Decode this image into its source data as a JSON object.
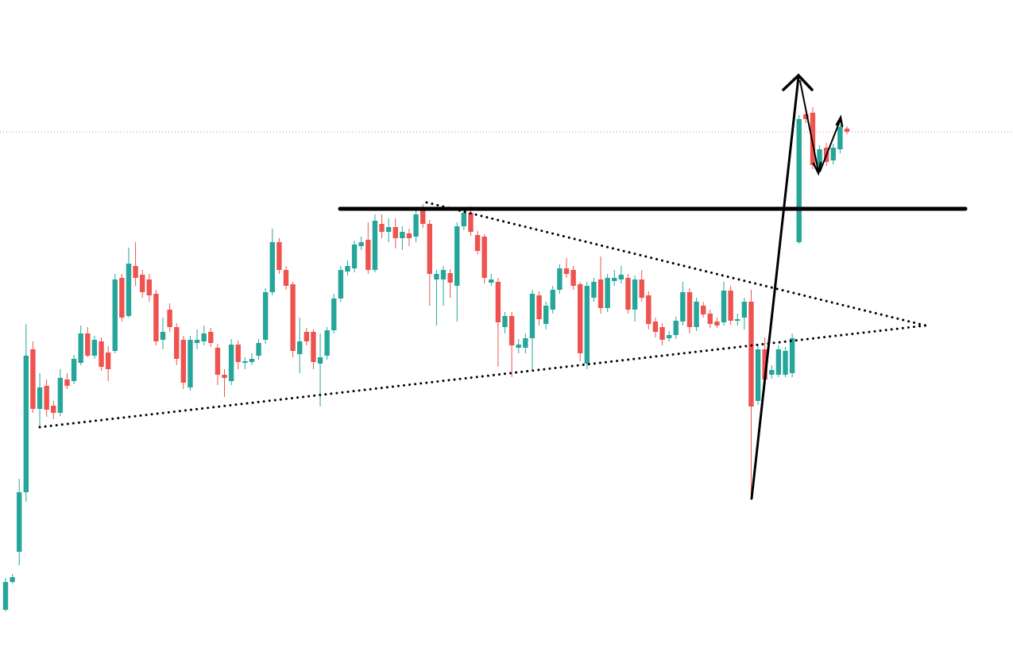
{
  "chart_data": {
    "type": "candlestick",
    "up_color": "#26a69a",
    "down_color": "#ef5350",
    "ylim": [
      0,
      825
    ],
    "open": [
      57,
      92,
      130,
      205,
      385,
      310,
      339,
      314,
      305,
      347,
      345,
      368,
      405,
      377,
      395,
      381,
      383,
      475,
      427,
      490,
      479,
      473,
      455,
      397,
      435,
      413,
      397,
      337,
      393,
      395,
      407,
      387,
      353,
      345,
      391,
      368,
      369,
      377,
      397,
      457,
      520,
      485,
      467,
      379,
      407,
      407,
      367,
      377,
      409,
      449,
      483,
      487,
      515,
      523,
      485,
      543,
      533,
      539,
      525,
      531,
      527,
      560,
      543,
      473,
      473,
      481,
      465,
      540,
      557,
      529,
      527,
      469,
      470,
      413,
      427,
      387,
      387,
      399,
      453,
      417,
      435,
      460,
      487,
      485,
      467,
      367,
      450,
      473,
      437,
      471,
      473,
      475,
      435,
      473,
      453,
      420,
      413,
      399,
      403,
      420,
      457,
      413,
      440,
      430,
      420,
      419,
      459,
      421,
      425,
      445,
      320,
      385,
      353,
      353,
      353,
      355,
      520,
      681,
      683,
      615,
      639,
      623,
      637,
      663
    ],
    "high": [
      97,
      102,
      222,
      417,
      395,
      355,
      347,
      320,
      360,
      355,
      378,
      415,
      413,
      402,
      400,
      389,
      480,
      480,
      513,
      520,
      485,
      480,
      460,
      425,
      443,
      418,
      402,
      402,
      410,
      415,
      412,
      392,
      360,
      398,
      396,
      375,
      380,
      398,
      462,
      537,
      525,
      490,
      470,
      425,
      412,
      410,
      405,
      413,
      455,
      490,
      497,
      522,
      527,
      545,
      555,
      555,
      550,
      550,
      540,
      537,
      560,
      568,
      548,
      485,
      490,
      486,
      545,
      562,
      565,
      534,
      530,
      480,
      475,
      432,
      432,
      398,
      405,
      460,
      458,
      445,
      465,
      492,
      500,
      490,
      470,
      470,
      475,
      502,
      480,
      485,
      490,
      480,
      478,
      485,
      458,
      425,
      418,
      408,
      426,
      470,
      462,
      450,
      445,
      435,
      425,
      470,
      465,
      430,
      450,
      460,
      390,
      400,
      365,
      390,
      388,
      405,
      680,
      685,
      690,
      642,
      645,
      644,
      668,
      666
    ],
    "low": [
      55,
      90,
      113,
      193,
      305,
      285,
      300,
      297,
      301,
      335,
      341,
      365,
      375,
      373,
      358,
      345,
      380,
      420,
      425,
      465,
      450,
      445,
      390,
      385,
      407,
      365,
      335,
      333,
      385,
      390,
      388,
      340,
      325,
      340,
      360,
      360,
      365,
      372,
      392,
      453,
      480,
      460,
      375,
      355,
      390,
      360,
      313,
      372,
      405,
      445,
      478,
      482,
      510,
      480,
      482,
      525,
      520,
      512,
      510,
      515,
      520,
      538,
      440,
      415,
      440,
      450,
      420,
      535,
      528,
      505,
      468,
      465,
      363,
      405,
      350,
      380,
      380,
      360,
      415,
      410,
      430,
      455,
      475,
      460,
      370,
      360,
      445,
      430,
      432,
      465,
      468,
      430,
      420,
      445,
      410,
      400,
      390,
      395,
      398,
      415,
      405,
      408,
      425,
      412,
      412,
      415,
      416,
      415,
      410,
      200,
      315,
      340,
      348,
      350,
      350,
      350,
      518,
      670,
      612,
      610,
      616,
      618,
      632,
      656
    ],
    "close": [
      92,
      98,
      205,
      377,
      310,
      337,
      309,
      305,
      349,
      339,
      373,
      405,
      377,
      397,
      363,
      360,
      473,
      425,
      493,
      475,
      457,
      453,
      395,
      407,
      413,
      373,
      343,
      397,
      397,
      405,
      393,
      353,
      349,
      391,
      369,
      370,
      373,
      393,
      457,
      520,
      485,
      465,
      383,
      395,
      395,
      369,
      375,
      409,
      449,
      485,
      490,
      517,
      520,
      485,
      547,
      533,
      539,
      525,
      533,
      525,
      555,
      543,
      480,
      480,
      485,
      469,
      540,
      557,
      533,
      509,
      475,
      473,
      419,
      427,
      390,
      391,
      399,
      455,
      423,
      440,
      460,
      487,
      480,
      465,
      380,
      465,
      470,
      437,
      475,
      475,
      479,
      435,
      473,
      450,
      417,
      407,
      397,
      403,
      421,
      457,
      413,
      445,
      429,
      417,
      415,
      459,
      421,
      423,
      445,
      313,
      385,
      347,
      359,
      385,
      383,
      399,
      675,
      675,
      617,
      637,
      621,
      639,
      665,
      659
    ]
  }
}
